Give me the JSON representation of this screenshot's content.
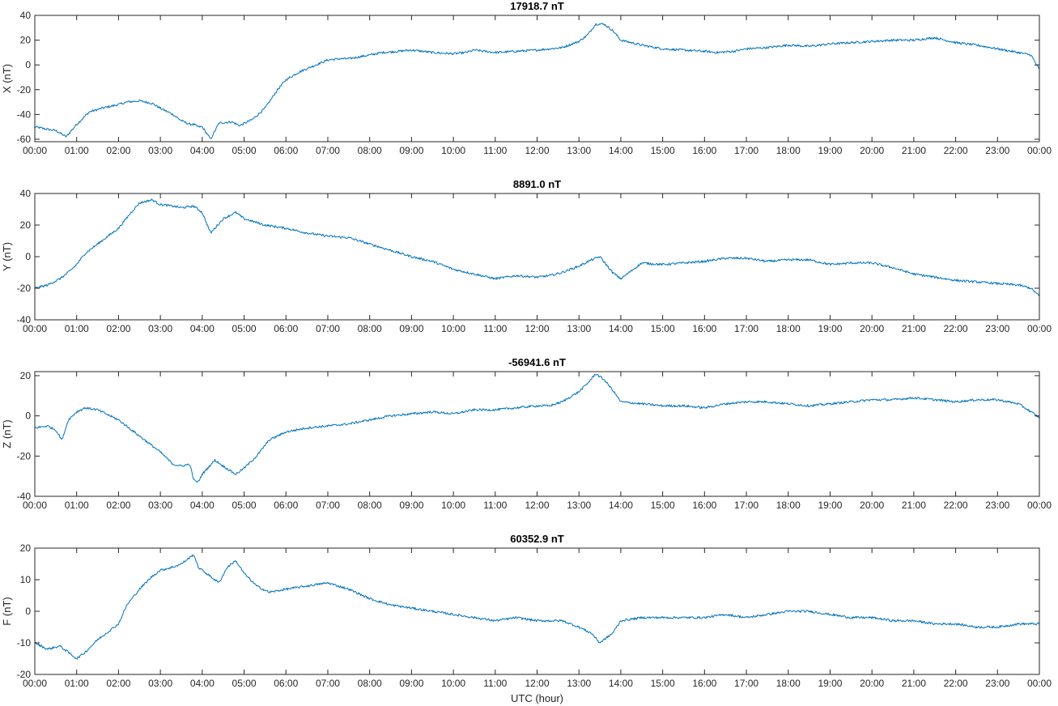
{
  "chart_data": [
    {
      "type": "line",
      "title": "17918.7 nT",
      "ylabel": "X (nT)",
      "xlabel": "",
      "xlim": [
        0,
        24
      ],
      "ylim": [
        -62,
        40
      ],
      "yticks": [
        -60,
        -40,
        -20,
        0,
        20,
        40
      ],
      "x_tick_labels": [
        "00:00",
        "01:00",
        "02:00",
        "03:00",
        "04:00",
        "05:00",
        "06:00",
        "07:00",
        "08:00",
        "09:00",
        "10:00",
        "11:00",
        "12:00",
        "13:00",
        "14:00",
        "15:00",
        "16:00",
        "17:00",
        "18:00",
        "19:00",
        "20:00",
        "21:00",
        "22:00",
        "23:00",
        "00:00"
      ],
      "grid": false,
      "color": "#0072BD",
      "series": [
        {
          "x": [
            0,
            0.3,
            0.5,
            0.65,
            0.75,
            1.0,
            1.3,
            1.6,
            2.0,
            2.2,
            2.5,
            2.8,
            3.0,
            3.3,
            3.5,
            3.7,
            3.8,
            3.9,
            4.0,
            4.2,
            4.4,
            4.7,
            4.9,
            5.2,
            5.5,
            5.8,
            6.0,
            6.3,
            6.5,
            7.0,
            7.3,
            7.5,
            8.0,
            8.3,
            8.7,
            9.0,
            9.5,
            10.0,
            10.3,
            10.5,
            11.0,
            11.5,
            12.0,
            12.3,
            12.6,
            13.0,
            13.2,
            13.4,
            13.6,
            13.8,
            14.0,
            14.5,
            15.0,
            15.5,
            16.0,
            16.3,
            16.7,
            17.0,
            17.5,
            18.0,
            18.5,
            19.0,
            19.5,
            20.0,
            20.5,
            21.0,
            21.5,
            22.0,
            22.5,
            23.0,
            23.5,
            23.8,
            24.0
          ],
          "y": [
            -50,
            -52,
            -53,
            -56,
            -58,
            -48,
            -38,
            -35,
            -32,
            -30,
            -29,
            -31,
            -35,
            -40,
            -45,
            -48,
            -48,
            -50,
            -50,
            -60,
            -47,
            -46,
            -49,
            -44,
            -35,
            -20,
            -12,
            -6,
            -3,
            4,
            5,
            5,
            8,
            10,
            11,
            12,
            10,
            9,
            10,
            12,
            10,
            11,
            12,
            13,
            14,
            19,
            24,
            33,
            33,
            28,
            20,
            16,
            13,
            12,
            11,
            10,
            11,
            13,
            14,
            16,
            15,
            17,
            18,
            19,
            20,
            20,
            22,
            18,
            16,
            13,
            10,
            8,
            -4
          ]
        }
      ]
    },
    {
      "type": "line",
      "title": "8891.0 nT",
      "ylabel": "Y (nT)",
      "xlabel": "",
      "xlim": [
        0,
        24
      ],
      "ylim": [
        -40,
        40
      ],
      "yticks": [
        -40,
        -20,
        0,
        20,
        40
      ],
      "x_tick_labels": [
        "00:00",
        "01:00",
        "02:00",
        "03:00",
        "04:00",
        "05:00",
        "06:00",
        "07:00",
        "08:00",
        "09:00",
        "10:00",
        "11:00",
        "12:00",
        "13:00",
        "14:00",
        "15:00",
        "16:00",
        "17:00",
        "18:00",
        "19:00",
        "20:00",
        "21:00",
        "22:00",
        "23:00",
        "00:00"
      ],
      "grid": false,
      "color": "#0072BD",
      "series": [
        {
          "x": [
            0,
            0.3,
            0.6,
            0.8,
            1.0,
            1.2,
            1.5,
            1.7,
            2.0,
            2.3,
            2.5,
            2.8,
            3.0,
            3.3,
            3.5,
            3.8,
            4.0,
            4.2,
            4.5,
            4.8,
            5.0,
            5.5,
            6.0,
            6.5,
            7.0,
            7.5,
            8.0,
            8.5,
            9.0,
            9.5,
            10.0,
            10.5,
            11.0,
            11.5,
            12.0,
            12.3,
            12.6,
            13.0,
            13.3,
            13.5,
            13.8,
            14.0,
            14.5,
            15.0,
            15.5,
            16.0,
            16.5,
            17.0,
            17.5,
            18.0,
            18.5,
            19.0,
            19.5,
            20.0,
            20.5,
            21.0,
            21.5,
            22.0,
            22.5,
            23.0,
            23.5,
            23.8,
            24.0
          ],
          "y": [
            -20,
            -18,
            -14,
            -10,
            -5,
            2,
            8,
            12,
            18,
            28,
            34,
            36,
            33,
            32,
            31,
            32,
            28,
            15,
            24,
            28,
            24,
            20,
            18,
            15,
            13,
            12,
            8,
            4,
            0,
            -3,
            -8,
            -11,
            -14,
            -12,
            -13,
            -12,
            -10,
            -6,
            -2,
            0,
            -10,
            -14,
            -4,
            -5,
            -4,
            -3,
            -1,
            -1,
            -3,
            -2,
            -2,
            -5,
            -4,
            -4,
            -7,
            -11,
            -13,
            -15,
            -16,
            -17,
            -18,
            -20,
            -25
          ]
        }
      ]
    },
    {
      "type": "line",
      "title": "-56941.6 nT",
      "ylabel": "Z (nT)",
      "xlabel": "",
      "xlim": [
        0,
        24
      ],
      "ylim": [
        -40,
        22
      ],
      "yticks": [
        -40,
        -20,
        0,
        20
      ],
      "x_tick_labels": [
        "00:00",
        "01:00",
        "02:00",
        "03:00",
        "04:00",
        "05:00",
        "06:00",
        "07:00",
        "08:00",
        "09:00",
        "10:00",
        "11:00",
        "12:00",
        "13:00",
        "14:00",
        "15:00",
        "16:00",
        "17:00",
        "18:00",
        "19:00",
        "20:00",
        "21:00",
        "22:00",
        "23:00",
        "00:00"
      ],
      "grid": false,
      "color": "#0072BD",
      "series": [
        {
          "x": [
            0,
            0.3,
            0.5,
            0.65,
            0.8,
            1.0,
            1.2,
            1.5,
            2.0,
            2.5,
            3.0,
            3.3,
            3.5,
            3.7,
            3.8,
            3.9,
            4.0,
            4.3,
            4.5,
            4.8,
            5.0,
            5.3,
            5.6,
            6.0,
            6.5,
            7.0,
            7.5,
            8.0,
            8.5,
            9.0,
            9.5,
            10.0,
            10.5,
            11.0,
            11.5,
            12.0,
            12.3,
            12.6,
            13.0,
            13.2,
            13.4,
            13.6,
            13.8,
            14.0,
            14.5,
            15.0,
            15.5,
            16.0,
            16.5,
            17.0,
            17.5,
            18.0,
            18.5,
            19.0,
            19.5,
            20.0,
            20.5,
            21.0,
            21.5,
            22.0,
            22.5,
            23.0,
            23.5,
            23.8,
            24.0
          ],
          "y": [
            -6,
            -5,
            -7,
            -12,
            -2,
            2,
            4,
            3,
            -2,
            -10,
            -18,
            -24,
            -25,
            -24,
            -32,
            -33,
            -29,
            -22,
            -25,
            -29,
            -26,
            -20,
            -12,
            -8,
            -6,
            -5,
            -4,
            -2,
            0,
            1,
            2,
            1,
            3,
            3,
            4,
            5,
            5,
            7,
            12,
            16,
            21,
            18,
            13,
            7,
            6,
            5,
            5,
            4,
            6,
            7,
            7,
            6,
            5,
            6,
            7,
            8,
            8,
            9,
            8,
            7,
            8,
            8,
            6,
            2,
            -1
          ]
        }
      ]
    },
    {
      "type": "line",
      "title": "60352.9 nT",
      "ylabel": "F (nT)",
      "xlabel": "UTC (hour)",
      "xlim": [
        0,
        24
      ],
      "ylim": [
        -20,
        20
      ],
      "yticks": [
        -20,
        -10,
        0,
        10,
        20
      ],
      "x_tick_labels": [
        "00:00",
        "01:00",
        "02:00",
        "03:00",
        "04:00",
        "05:00",
        "06:00",
        "07:00",
        "08:00",
        "09:00",
        "10:00",
        "11:00",
        "12:00",
        "13:00",
        "14:00",
        "15:00",
        "16:00",
        "17:00",
        "18:00",
        "19:00",
        "20:00",
        "21:00",
        "22:00",
        "23:00",
        "00:00"
      ],
      "grid": false,
      "color": "#0072BD",
      "series": [
        {
          "x": [
            0,
            0.3,
            0.6,
            0.8,
            1.0,
            1.2,
            1.5,
            1.8,
            2.0,
            2.2,
            2.5,
            2.8,
            3.0,
            3.3,
            3.5,
            3.7,
            3.8,
            3.9,
            4.0,
            4.2,
            4.4,
            4.6,
            4.8,
            5.0,
            5.3,
            5.6,
            6.0,
            6.5,
            7.0,
            7.5,
            8.0,
            8.5,
            9.0,
            9.5,
            10.0,
            10.5,
            11.0,
            11.5,
            12.0,
            12.3,
            12.6,
            13.0,
            13.3,
            13.5,
            13.8,
            14.0,
            14.5,
            15.0,
            15.5,
            16.0,
            16.5,
            17.0,
            17.5,
            18.0,
            18.5,
            19.0,
            19.5,
            20.0,
            20.5,
            21.0,
            21.5,
            22.0,
            22.5,
            23.0,
            23.5,
            23.8,
            24.0
          ],
          "y": [
            -10,
            -12,
            -11,
            -13,
            -15,
            -13,
            -9,
            -6,
            -4,
            2,
            7,
            11,
            13,
            14,
            15,
            17,
            18,
            14,
            13,
            11,
            9,
            14,
            16,
            12,
            8,
            6,
            7,
            8,
            9,
            7,
            4,
            2,
            1,
            0,
            -1,
            -2,
            -3,
            -2,
            -3,
            -3,
            -3,
            -5,
            -7,
            -10,
            -7,
            -3,
            -2,
            -2,
            -2,
            -2,
            -1,
            -2,
            -1,
            0,
            0,
            -1,
            -2,
            -2,
            -3,
            -3,
            -4,
            -4,
            -5,
            -5,
            -4,
            -4,
            -4
          ]
        }
      ]
    }
  ]
}
